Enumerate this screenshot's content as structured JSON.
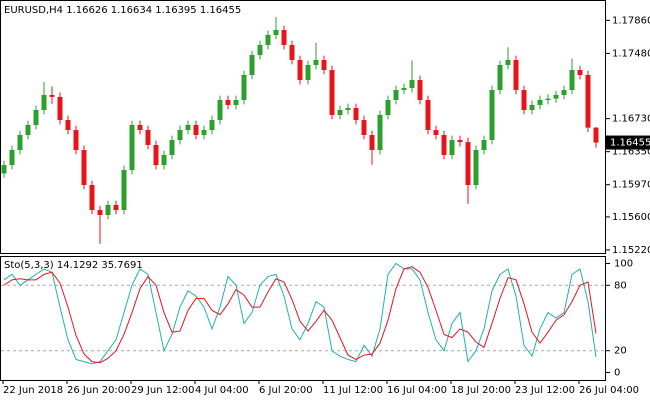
{
  "chart_data": [
    {
      "type": "candlestick",
      "title": "EURUSD,H4",
      "open": [
        1.161,
        1.16196,
        1.16369,
        1.16542,
        1.16657,
        1.16829,
        1.17002,
        1.1698,
        1.16714,
        1.16599,
        1.16369,
        1.15967,
        1.15679,
        1.15622,
        1.15737,
        1.15679,
        1.16139,
        1.16657,
        1.16599,
        1.16427,
        1.16196,
        1.16312,
        1.16484,
        1.16599,
        1.16657,
        1.16542,
        1.16599,
        1.16714,
        1.16944,
        1.16887,
        1.16944,
        1.17232,
        1.17462,
        1.17577,
        1.17692,
        1.17749,
        1.17577,
        1.17404,
        1.17174,
        1.17347,
        1.17404,
        1.17289,
        1.16772,
        1.16829,
        1.16852,
        1.16714,
        1.16542,
        1.16369,
        1.16772,
        1.16944,
        1.17059,
        1.17082,
        1.17174,
        1.16944,
        1.16599,
        1.16542,
        1.16312,
        1.16484,
        1.1646,
        1.15967,
        1.16369,
        1.16484,
        1.17059,
        1.17347,
        1.17404,
        1.17059,
        1.16829,
        1.16887,
        1.16944,
        1.1696,
        1.17002,
        1.17059,
        1.17289,
        1.17232,
        1.16626
      ],
      "high": [
        1.16246,
        1.16419,
        1.16592,
        1.16707,
        1.16879,
        1.17152,
        1.171,
        1.1703,
        1.16764,
        1.16649,
        1.16419,
        1.16017,
        1.15729,
        1.15787,
        1.15787,
        1.16189,
        1.16707,
        1.16707,
        1.16649,
        1.16477,
        1.16362,
        1.16534,
        1.16649,
        1.16707,
        1.16707,
        1.16649,
        1.16764,
        1.16994,
        1.16994,
        1.16994,
        1.17282,
        1.17512,
        1.17627,
        1.17742,
        1.179,
        1.17799,
        1.17627,
        1.17454,
        1.17397,
        1.176,
        1.17454,
        1.17339,
        1.16879,
        1.16902,
        1.16902,
        1.16764,
        1.16592,
        1.16822,
        1.16994,
        1.17109,
        1.17132,
        1.174,
        1.17224,
        1.16994,
        1.16649,
        1.16592,
        1.16534,
        1.16534,
        1.1651,
        1.16419,
        1.16534,
        1.17109,
        1.17397,
        1.1755,
        1.17454,
        1.17109,
        1.16937,
        1.16994,
        1.1701,
        1.17052,
        1.17109,
        1.1742,
        1.17339,
        1.17282,
        1.16634
      ],
      "low": [
        1.1605,
        1.16146,
        1.16319,
        1.16492,
        1.16607,
        1.16779,
        1.169,
        1.16664,
        1.16549,
        1.16319,
        1.15917,
        1.15629,
        1.1529,
        1.15572,
        1.15629,
        1.15629,
        1.16089,
        1.16549,
        1.16377,
        1.16146,
        1.16146,
        1.16262,
        1.16434,
        1.16549,
        1.16492,
        1.16492,
        1.16549,
        1.16664,
        1.16837,
        1.16837,
        1.16894,
        1.17182,
        1.17412,
        1.17527,
        1.17642,
        1.17527,
        1.17354,
        1.17124,
        1.17124,
        1.17297,
        1.17239,
        1.16722,
        1.16722,
        1.16779,
        1.16664,
        1.16492,
        1.162,
        1.16319,
        1.16722,
        1.16894,
        1.17009,
        1.17032,
        1.16894,
        1.16549,
        1.16492,
        1.16262,
        1.16262,
        1.1641,
        1.1575,
        1.15917,
        1.16319,
        1.16434,
        1.17009,
        1.17297,
        1.17009,
        1.16779,
        1.16779,
        1.16837,
        1.16894,
        1.1691,
        1.16952,
        1.17009,
        1.17182,
        1.16576,
        1.16395
      ],
      "close": [
        1.16196,
        1.16369,
        1.16542,
        1.16657,
        1.16829,
        1.17002,
        1.1698,
        1.16714,
        1.16599,
        1.16369,
        1.15967,
        1.15679,
        1.15622,
        1.15737,
        1.15679,
        1.16139,
        1.16657,
        1.16599,
        1.16427,
        1.16196,
        1.16312,
        1.16484,
        1.16599,
        1.16657,
        1.16542,
        1.16599,
        1.16714,
        1.16944,
        1.16887,
        1.16944,
        1.17232,
        1.17462,
        1.17577,
        1.17692,
        1.17749,
        1.17577,
        1.17404,
        1.17174,
        1.17347,
        1.17404,
        1.17289,
        1.16772,
        1.16829,
        1.16852,
        1.16714,
        1.16542,
        1.16369,
        1.16772,
        1.16944,
        1.17059,
        1.17082,
        1.17174,
        1.16944,
        1.16599,
        1.16542,
        1.16312,
        1.16484,
        1.1646,
        1.15967,
        1.16369,
        1.16484,
        1.17059,
        1.17347,
        1.17404,
        1.17059,
        1.16829,
        1.16887,
        1.16944,
        1.1696,
        1.17002,
        1.17059,
        1.17289,
        1.17232,
        1.16626,
        1.16455
      ],
      "up_color": "#2ca02c",
      "down_color": "#e8141c",
      "ylim": [
        1.15185,
        1.18094
      ],
      "yticks": [
        {
          "value": 1.1522,
          "label": "1.15220"
        },
        {
          "value": 1.156,
          "label": "1.15600"
        },
        {
          "value": 1.1597,
          "label": "1.15970"
        },
        {
          "value": 1.1635,
          "label": "1.16350"
        },
        {
          "value": 1.1673,
          "label": "1.16730"
        },
        {
          "value": 1.1748,
          "label": "1.17480"
        },
        {
          "value": 1.1786,
          "label": "1.17860"
        }
      ],
      "x_labels": [
        "22 Jun 2018",
        "26 Jun 20:00",
        "29 Jun 12:00",
        "4 Jul 04:00",
        "6 Jul 20:00",
        "11 Jul 12:00",
        "16 Jul 04:00",
        "18 Jul 20:00",
        "23 Jul 12:00",
        "26 Jul 04:00"
      ]
    },
    {
      "type": "line",
      "title": "Sto(5,3,3)",
      "series": [
        {
          "color": "#20b2aa",
          "values": [
            85,
            90,
            80,
            85,
            90,
            95,
            92,
            60,
            30,
            12,
            10,
            8,
            10,
            20,
            30,
            55,
            80,
            95,
            90,
            55,
            20,
            35,
            60,
            75,
            70,
            60,
            40,
            60,
            88,
            80,
            45,
            55,
            80,
            88,
            90,
            70,
            40,
            30,
            45,
            65,
            60,
            20,
            15,
            12,
            10,
            25,
            15,
            40,
            90,
            100,
            95,
            95,
            85,
            55,
            30,
            20,
            45,
            55,
            10,
            20,
            40,
            75,
            90,
            95,
            70,
            25,
            15,
            40,
            55,
            50,
            55,
            90,
            95,
            65,
            14.1292
          ]
        },
        {
          "color": "#e8141c",
          "values": [
            80,
            85,
            86,
            85,
            85,
            90,
            92,
            82,
            60,
            34,
            17,
            10,
            9,
            13,
            20,
            35,
            55,
            77,
            88,
            80,
            55,
            37,
            38,
            57,
            68,
            68,
            57,
            53,
            63,
            76,
            71,
            60,
            60,
            74,
            86,
            83,
            67,
            47,
            38,
            47,
            57,
            48,
            32,
            16,
            12,
            16,
            17,
            27,
            48,
            77,
            95,
            97,
            92,
            78,
            57,
            35,
            32,
            40,
            37,
            28,
            23,
            45,
            68,
            87,
            85,
            63,
            37,
            27,
            37,
            48,
            53,
            65,
            80,
            83,
            35.7691
          ]
        }
      ],
      "ylim": [
        -5,
        105
      ],
      "yticks": [
        0,
        20,
        80,
        100
      ],
      "levels": [
        20,
        80
      ]
    }
  ]
}
